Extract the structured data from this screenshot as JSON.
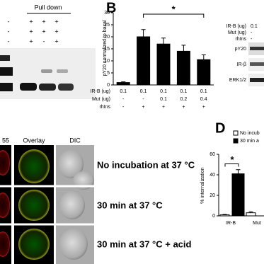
{
  "chart_data": [
    {
      "type": "bar",
      "panel": "B",
      "ylabel": "pY20 normalized to basal",
      "values": [
        1,
        20,
        17,
        14,
        10.5
      ],
      "errors": [
        0.3,
        3,
        2.5,
        2.5,
        2
      ],
      "color": "#000000",
      "ylim": [
        0,
        30
      ],
      "yticks": [
        0,
        5,
        10,
        15,
        20,
        25,
        30
      ],
      "annotation": "*",
      "table": [
        {
          "label": "IR-B (ug)",
          "cells": [
            "0.1",
            "0.1",
            "0.1",
            "0.1",
            "0.1"
          ]
        },
        {
          "label": "Mut (ug)",
          "cells": [
            "-",
            "-",
            "0.1",
            "0.2",
            "0.4"
          ]
        },
        {
          "label": "rhIns",
          "cells": [
            "-",
            "+",
            "+",
            "+",
            "+"
          ]
        }
      ]
    },
    {
      "type": "bar",
      "panel": "D",
      "ylabel": "% internalization",
      "categories": [
        "IR-B",
        "Mut"
      ],
      "series": [
        {
          "name": "No incub",
          "color": "#ffffff",
          "values": [
            1,
            3
          ],
          "errors": [
            0.5,
            1
          ]
        },
        {
          "name": "30 min a",
          "color": "#000000",
          "values": [
            41,
            null
          ],
          "errors": [
            4,
            null
          ]
        }
      ],
      "ylim": [
        0,
        60
      ],
      "yticks": [
        0,
        20,
        40,
        60
      ],
      "annotation": "*"
    }
  ],
  "blot_left": {
    "title": "Pull down",
    "rows": [
      [
        "-",
        "+",
        "+",
        "+"
      ],
      [
        "-",
        "+",
        "+",
        "+"
      ],
      [
        "-",
        "+",
        "-",
        "+"
      ]
    ]
  },
  "blot_right": {
    "rows": [
      {
        "label": "IR-B (ug)",
        "value": "0.1"
      },
      {
        "label": "Mut (ug)",
        "value": "-"
      },
      {
        "label": "rhIns",
        "value": "-"
      }
    ],
    "bands": [
      "pY20",
      "IR-β",
      "ERK1/2"
    ]
  },
  "microscopy": {
    "columns": [
      "55",
      "Overlay",
      "DIC"
    ],
    "rows": [
      "No incubation at 37 °C",
      "30 min at 37 °C",
      "30 min at 37 °C + acid"
    ]
  }
}
